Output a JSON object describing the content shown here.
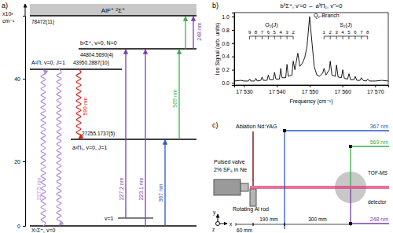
{
  "panel_a": {
    "label": "a)",
    "axis_label": [
      "x10³",
      "cm⁻¹"
    ],
    "yticks": [
      0,
      20,
      40
    ],
    "levels": [
      {
        "label": "X¹Σ⁺, v=0",
        "energy": 0
      },
      {
        "label": "v=1"
      },
      {
        "label": "a³Π₁, v=0, J=1",
        "energy": 27.2551737,
        "energy_label": "27255.1737(5)"
      },
      {
        "label": "A¹Π, v=0, J=1",
        "energy": 43.9502887,
        "energy_label": "43950.2887(10)"
      },
      {
        "label": "b³Σ⁺, v=0, N=0",
        "energy": 44.804569,
        "energy_label": "44804.5690(4)"
      },
      {
        "label": "AlF⁺ ²Σ⁺",
        "energy": 78.472,
        "energy_label": "78472(11)"
      }
    ],
    "transitions": [
      {
        "from": 0,
        "to": 3,
        "label": "227.5 nm",
        "color": "#b28fdc",
        "line_style": "wavy"
      },
      {
        "from": 3,
        "to": 2,
        "label": "599 nm",
        "color": "#e0201c",
        "line_style": "wavy"
      },
      {
        "from": 3,
        "to": 0,
        "color": "#b28fdc",
        "line_style": "wavy"
      },
      {
        "from": 1,
        "to": 4,
        "label": "227.2 nm",
        "color": "#7a3fb5",
        "line_style": "solid"
      },
      {
        "from": 0,
        "to": 4,
        "label": "223.1 nm",
        "color": "#7a3fb5",
        "line_style": "solid"
      },
      {
        "from": 0,
        "to": 2,
        "label": "367 nm",
        "color": "#2f56c8",
        "line_style": "solid"
      },
      {
        "from": 2,
        "to": 4,
        "label": "569 nm",
        "color": "#3bb04a",
        "line_style": "solid"
      },
      {
        "from": 4,
        "to": 5,
        "color": "#3bb04a",
        "line_style": "solid"
      },
      {
        "from": 4,
        "to": 5,
        "label": "248 nm",
        "color": "#7a3fb5",
        "line_style": "solid"
      }
    ]
  },
  "chart_data": {
    "type": "line",
    "label": "b)",
    "title": "b³Σ⁺, v'=0 ← a³Π₁, v''=0",
    "x_label": "Frequency (cm⁻¹)",
    "y_label": "Ion Signal (arb. units)",
    "color": "#000000",
    "xlim": [
      17527,
      17574
    ],
    "xticks": [
      {
        "value": 17530,
        "label": "17 530"
      },
      {
        "value": 17540,
        "label": "17 540"
      },
      {
        "value": 17550,
        "label": "17 550"
      },
      {
        "value": 17560,
        "label": "17 560"
      },
      {
        "value": 17570,
        "label": "17 570"
      }
    ],
    "ylim": [
      -0.03,
      1.06
    ],
    "yticks": [
      {
        "value": 0,
        "label": "0.0"
      },
      0.2,
      0.4,
      0.6,
      0.8,
      {
        "value": 1,
        "label": "1.0"
      }
    ],
    "x": [
      17527,
      17529,
      17530,
      17531.3,
      17531.7,
      17532.1,
      17533.2,
      17533.6,
      17534.0,
      17535.1,
      17535.5,
      17535.9,
      17537.0,
      17537.4,
      17537.8,
      17538.9,
      17539.3,
      17539.7,
      17540.8,
      17541.2,
      17541.6,
      17542.7,
      17543.1,
      17543.5,
      17544.6,
      17545.0,
      17545.5,
      17546.4,
      17547.0,
      17547.8,
      17548.5,
      17549.2,
      17550.0,
      17550.7,
      17551.4,
      17552.2,
      17553.0,
      17554.0,
      17554.4,
      17555.0,
      17556.0,
      17556.3,
      17556.8,
      17557.8,
      17558.2,
      17558.7,
      17559.7,
      17560.1,
      17560.6,
      17561.6,
      17562.0,
      17562.5,
      17563.5,
      17563.9,
      17564.4,
      17565.4,
      17565.8,
      17566.3,
      17567.3,
      17567.7,
      17568.2,
      17570,
      17572,
      17574
    ],
    "values": [
      0.03,
      0.04,
      0.03,
      0.03,
      0.06,
      0.03,
      0.03,
      0.07,
      0.03,
      0.04,
      0.09,
      0.04,
      0.04,
      0.12,
      0.05,
      0.05,
      0.16,
      0.06,
      0.06,
      0.22,
      0.08,
      0.08,
      0.28,
      0.1,
      0.12,
      0.33,
      0.2,
      0.45,
      0.25,
      0.3,
      0.38,
      0.55,
      1.0,
      0.62,
      0.25,
      0.12,
      0.1,
      0.15,
      0.22,
      0.12,
      0.2,
      0.33,
      0.12,
      0.1,
      0.27,
      0.09,
      0.08,
      0.2,
      0.07,
      0.06,
      0.14,
      0.05,
      0.05,
      0.1,
      0.04,
      0.04,
      0.08,
      0.04,
      0.03,
      0.06,
      0.03,
      0.03,
      0.04,
      0.03
    ],
    "branches": [
      {
        "name": "O₂(J)",
        "J": [
          9,
          8,
          7,
          6,
          5,
          4,
          3,
          2
        ],
        "positions": [
          17531.7,
          17533.6,
          17535.5,
          17537.4,
          17539.3,
          17541.2,
          17543.1,
          17545.0
        ]
      },
      {
        "name": "S₂(J)",
        "J": [
          1,
          2,
          3,
          4,
          5,
          6,
          7,
          8
        ],
        "positions": [
          17554.4,
          17556.3,
          17558.2,
          17560.1,
          17562.0,
          17563.9,
          17565.8,
          17567.7
        ]
      }
    ],
    "annotations": [
      {
        "text": "Q₂-Branch",
        "x": 17550
      }
    ]
  },
  "panel_c": {
    "label": "c)",
    "laser_source": "Ablation Nd:YAG",
    "valve": [
      "Pulsed valve",
      "2% SF₆ in Ne"
    ],
    "rod": "Rotating Al rod",
    "detector": [
      "TOF-MS",
      "detector"
    ],
    "lasers": [
      {
        "label": "367 nm",
        "color": "#2f56c8"
      },
      {
        "label": "569 nm",
        "color": "#3bb04a"
      },
      {
        "label": "248 nm",
        "color": "#7a3fb5"
      }
    ],
    "distances": [
      "60 mm",
      "190 mm",
      "300 mm"
    ],
    "axes": [
      "x",
      "y",
      "z"
    ]
  }
}
